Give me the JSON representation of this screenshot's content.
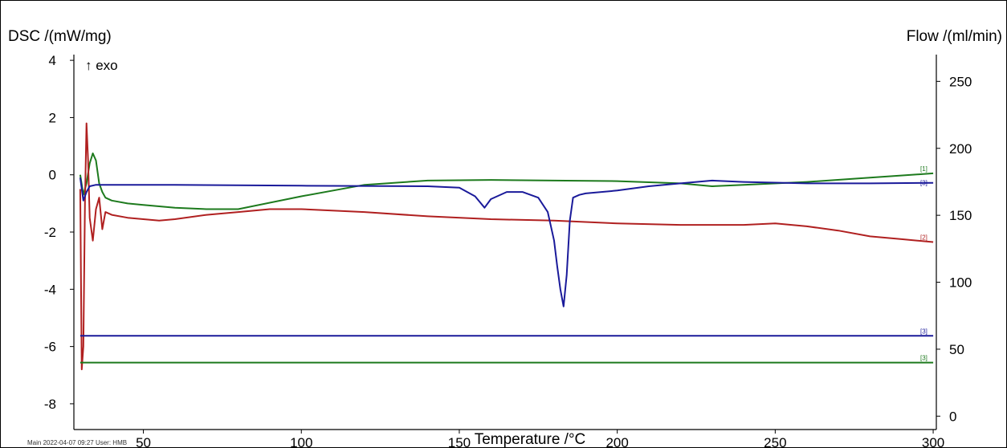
{
  "chart_data": {
    "type": "line",
    "ylabel_left": "DSC /(mW/mg)",
    "ylabel_right": "Flow /(ml/min)",
    "xlabel": "Temperature /°C",
    "annotation": "↑ exo",
    "footer": "Main   2022-04-07 09:27   User: HMB",
    "xlim": [
      28,
      301
    ],
    "ylim_left": [
      -8.9,
      4.2
    ],
    "ylim_right": [
      -10,
      270
    ],
    "x_ticks": [
      50,
      100,
      150,
      200,
      250,
      300
    ],
    "y_ticks_left": [
      4,
      2,
      0,
      -2,
      -4,
      -6,
      -8
    ],
    "y_ticks_right": [
      250,
      200,
      150,
      100,
      50,
      0
    ],
    "grid": false,
    "series": [
      {
        "label": "[1]",
        "axis": "left",
        "color": "#1d7a1d",
        "x": [
          30,
          31,
          32,
          33,
          34,
          35,
          36,
          37,
          38,
          40,
          45,
          50,
          60,
          70,
          80,
          100,
          120,
          140,
          160,
          180,
          200,
          220,
          230,
          240,
          260,
          280,
          300
        ],
        "y": [
          0,
          -0.7,
          -0.3,
          0.4,
          0.75,
          0.5,
          -0.3,
          -0.6,
          -0.8,
          -0.9,
          -1.0,
          -1.05,
          -1.15,
          -1.2,
          -1.2,
          -0.75,
          -0.35,
          -0.2,
          -0.18,
          -0.2,
          -0.22,
          -0.3,
          -0.4,
          -0.35,
          -0.25,
          -0.1,
          0.05
        ]
      },
      {
        "label": "[2]",
        "axis": "left",
        "color": "#b02020",
        "x": [
          30,
          30.5,
          31,
          31.5,
          32,
          32.5,
          33,
          34,
          35,
          36,
          37,
          38,
          40,
          45,
          50,
          55,
          60,
          70,
          80,
          90,
          100,
          120,
          140,
          160,
          180,
          200,
          220,
          240,
          250,
          260,
          270,
          280,
          290,
          300
        ],
        "y": [
          -0.5,
          -6.8,
          -6.0,
          -1.0,
          1.8,
          0.5,
          -1.5,
          -2.3,
          -1.2,
          -0.8,
          -1.9,
          -1.3,
          -1.4,
          -1.5,
          -1.55,
          -1.6,
          -1.55,
          -1.4,
          -1.3,
          -1.2,
          -1.2,
          -1.3,
          -1.45,
          -1.55,
          -1.6,
          -1.7,
          -1.75,
          -1.75,
          -1.7,
          -1.8,
          -1.95,
          -2.15,
          -2.25,
          -2.35
        ]
      },
      {
        "label": "[3]",
        "axis": "left",
        "color": "#1a1a9a",
        "x": [
          30,
          31,
          32,
          33,
          35,
          40,
          60,
          100,
          140,
          150,
          155,
          158,
          160,
          165,
          170,
          175,
          178,
          180,
          181,
          182,
          183,
          184,
          185,
          186,
          188,
          190,
          200,
          210,
          220,
          230,
          240,
          260,
          280,
          300
        ],
        "y": [
          -0.1,
          -0.9,
          -0.6,
          -0.4,
          -0.35,
          -0.35,
          -0.35,
          -0.38,
          -0.4,
          -0.45,
          -0.75,
          -1.15,
          -0.85,
          -0.6,
          -0.6,
          -0.8,
          -1.3,
          -2.3,
          -3.2,
          -4.0,
          -4.6,
          -3.5,
          -1.6,
          -0.8,
          -0.7,
          -0.65,
          -0.55,
          -0.4,
          -0.3,
          -0.2,
          -0.25,
          -0.3,
          -0.3,
          -0.28
        ]
      },
      {
        "label": "[3]",
        "axis": "right",
        "color": "#1a1a9a",
        "x": [
          30,
          300
        ],
        "y": [
          60,
          60
        ]
      },
      {
        "label": "[3]",
        "axis": "right",
        "color": "#1d7a1d",
        "x": [
          30,
          300
        ],
        "y": [
          40,
          40
        ]
      }
    ]
  }
}
